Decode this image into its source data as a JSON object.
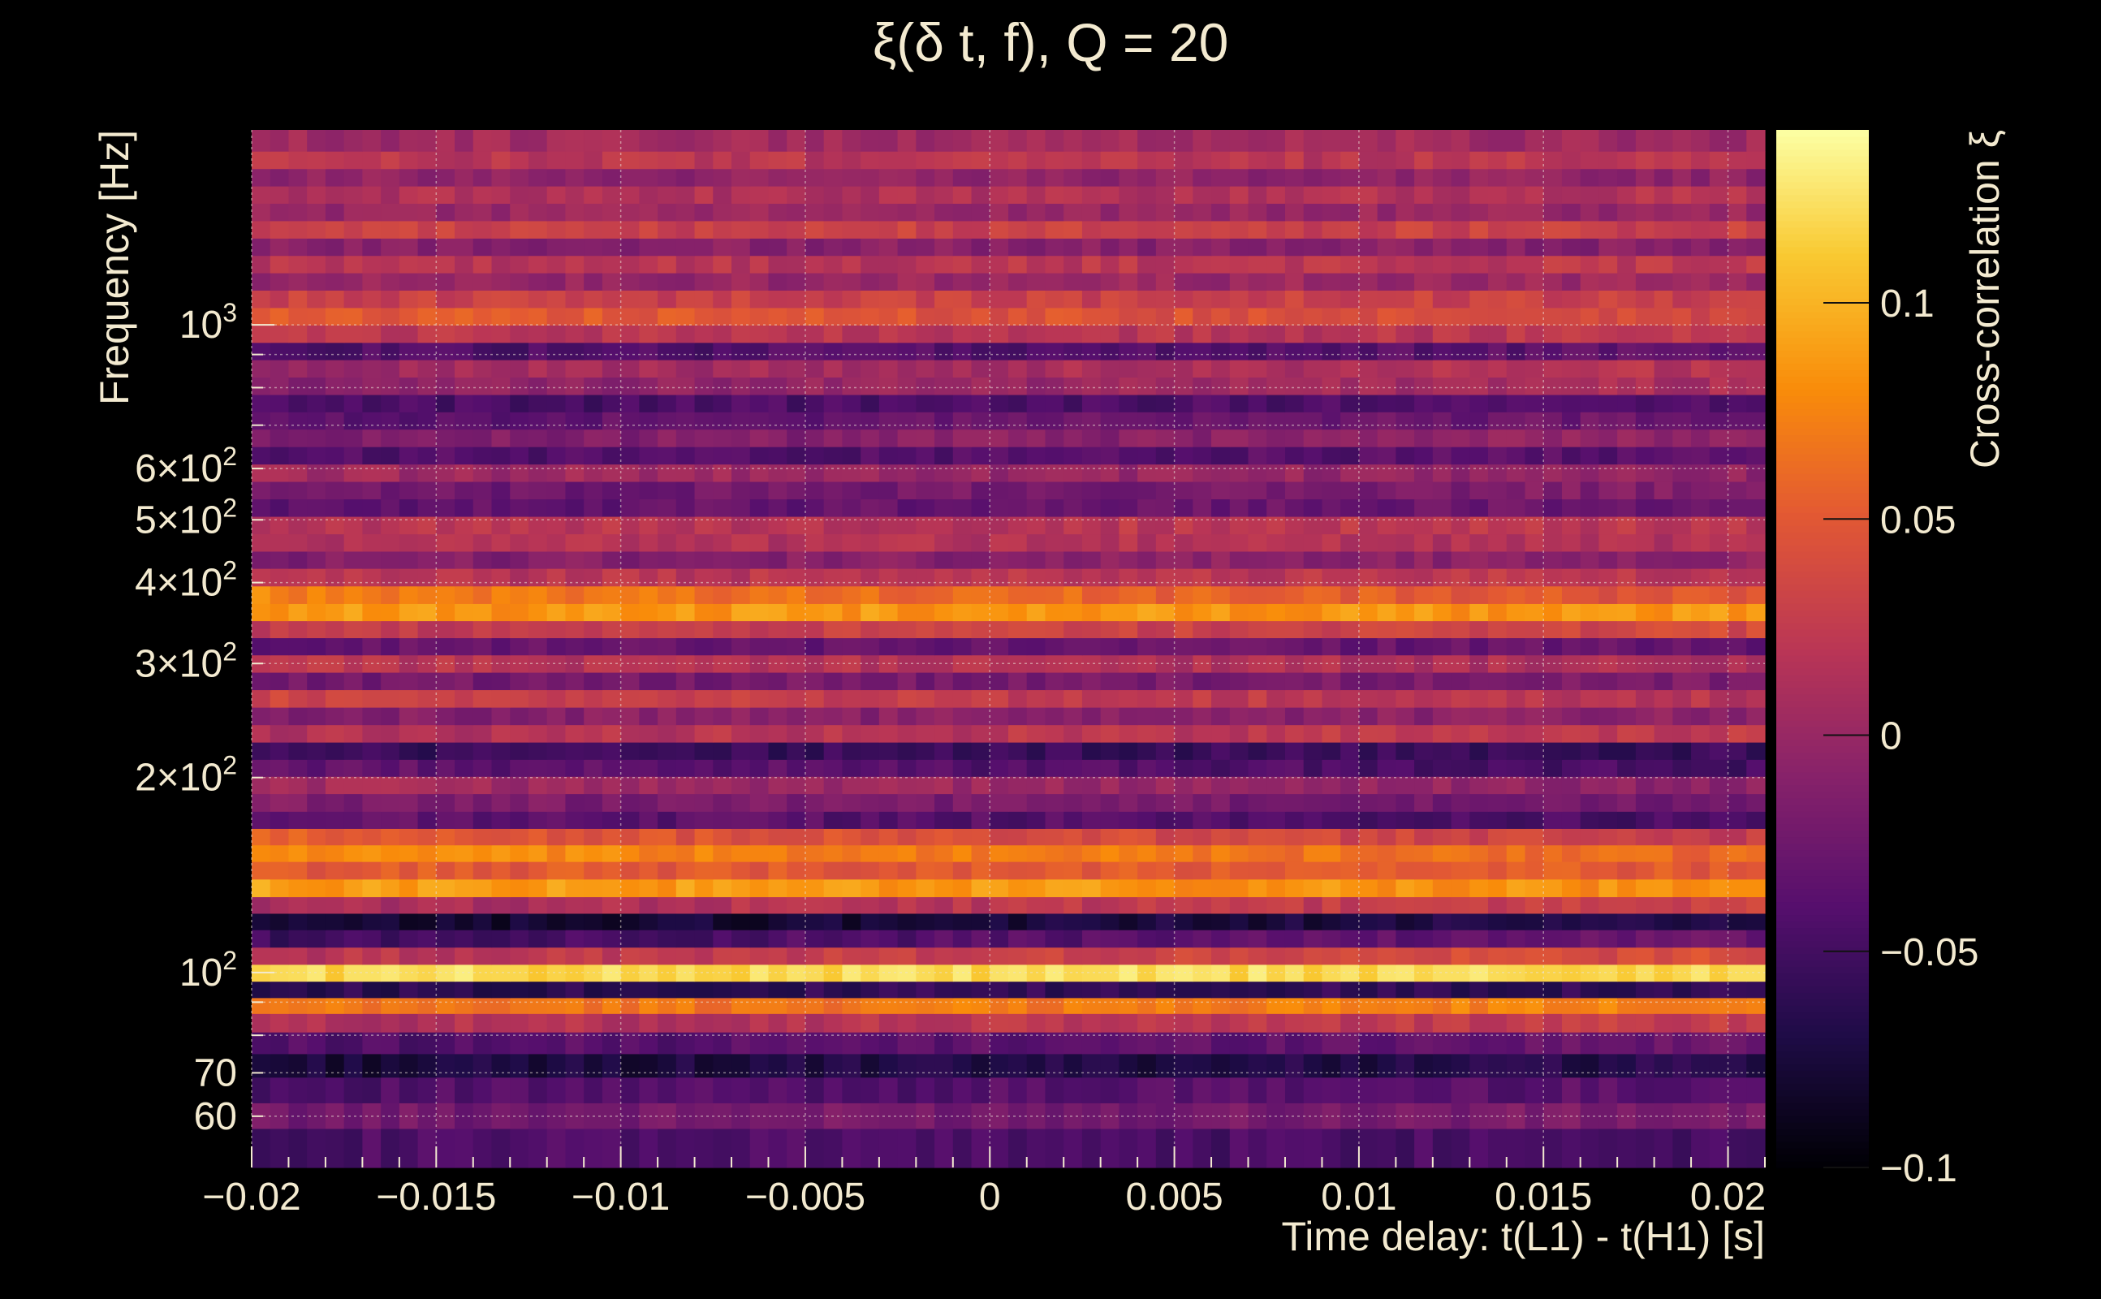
{
  "chart_data": {
    "type": "heatmap",
    "title": "ξ(δ t, f), Q = 20",
    "xlabel": "Time delay: t(L1) - t(H1) [s]",
    "ylabel": "Frequency [Hz]",
    "zlabel": "Cross-correlation ξ",
    "xlim": [
      -0.02,
      0.021
    ],
    "ylim": [
      50,
      2000
    ],
    "yscale": "log",
    "zlim": [
      -0.1,
      0.14
    ],
    "grid": true,
    "colormap": "inferno",
    "x_ticks": [
      -0.02,
      -0.015,
      -0.01,
      -0.005,
      0,
      0.005,
      0.01,
      0.015,
      0.02
    ],
    "x_tick_labels": [
      "−0.02",
      "−0.015",
      "−0.01",
      "−0.005",
      "0",
      "0.005",
      "0.01",
      "0.015",
      "0.02"
    ],
    "y_ticks": [
      {
        "value": 1000,
        "base": "10",
        "exp": "3"
      },
      {
        "value": 600,
        "base": "6×10",
        "exp": "2"
      },
      {
        "value": 500,
        "base": "5×10",
        "exp": "2"
      },
      {
        "value": 400,
        "base": "4×10",
        "exp": "2"
      },
      {
        "value": 300,
        "base": "3×10",
        "exp": "2"
      },
      {
        "value": 200,
        "base": "2×10",
        "exp": "2"
      },
      {
        "value": 100,
        "base": "10",
        "exp": "2"
      },
      {
        "value": 70,
        "base": "70",
        "exp": ""
      },
      {
        "value": 60,
        "base": "60",
        "exp": ""
      }
    ],
    "z_ticks": [
      0.1,
      0.05,
      0,
      -0.05,
      -0.1
    ],
    "z_tick_labels": [
      "0.1",
      "0.05",
      "0",
      "−0.05",
      "−0.1"
    ],
    "frequency_bands": [
      {
        "f": 55,
        "mean": -0.045,
        "slope": 0.0
      },
      {
        "f": 60,
        "mean": -0.02,
        "slope": 0.1
      },
      {
        "f": 66,
        "mean": -0.04,
        "slope": 0.15
      },
      {
        "f": 72,
        "mean": -0.07,
        "slope": 0.2
      },
      {
        "f": 78,
        "mean": -0.035,
        "slope": 0.3
      },
      {
        "f": 84,
        "mean": 0.02,
        "slope": 0.3
      },
      {
        "f": 89,
        "mean": 0.07,
        "slope": 0.2
      },
      {
        "f": 94,
        "mean": -0.06,
        "slope": 0.1
      },
      {
        "f": 100,
        "mean": 0.12,
        "slope": 0.0
      },
      {
        "f": 106,
        "mean": 0.03,
        "slope": 0.5
      },
      {
        "f": 113,
        "mean": -0.04,
        "slope": 0.5
      },
      {
        "f": 120,
        "mean": -0.075,
        "slope": 0.3
      },
      {
        "f": 127,
        "mean": 0.02,
        "slope": 0.5
      },
      {
        "f": 135,
        "mean": 0.085,
        "slope": -0.2
      },
      {
        "f": 144,
        "mean": 0.05,
        "slope": 0.0
      },
      {
        "f": 153,
        "mean": 0.07,
        "slope": -0.4
      },
      {
        "f": 162,
        "mean": 0.04,
        "slope": -0.5
      },
      {
        "f": 172,
        "mean": -0.04,
        "slope": -0.3
      },
      {
        "f": 183,
        "mean": -0.02,
        "slope": -0.2
      },
      {
        "f": 195,
        "mean": 0.0,
        "slope": -0.3
      },
      {
        "f": 207,
        "mean": -0.04,
        "slope": -0.3
      },
      {
        "f": 220,
        "mean": -0.055,
        "slope": 0.0
      },
      {
        "f": 234,
        "mean": 0.02,
        "slope": 0.2
      },
      {
        "f": 249,
        "mean": -0.01,
        "slope": 0.1
      },
      {
        "f": 265,
        "mean": 0.025,
        "slope": -0.3
      },
      {
        "f": 282,
        "mean": -0.02,
        "slope": 0.1
      },
      {
        "f": 300,
        "mean": 0.015,
        "slope": -0.2
      },
      {
        "f": 319,
        "mean": -0.03,
        "slope": 0.0
      },
      {
        "f": 339,
        "mean": 0.03,
        "slope": 0.3
      },
      {
        "f": 360,
        "mean": 0.085,
        "slope": 0.0
      },
      {
        "f": 383,
        "mean": 0.06,
        "slope": -0.6
      },
      {
        "f": 408,
        "mean": 0.02,
        "slope": 0.1
      },
      {
        "f": 434,
        "mean": -0.01,
        "slope": 0.2
      },
      {
        "f": 461,
        "mean": 0.015,
        "slope": -0.1
      },
      {
        "f": 491,
        "mean": 0.02,
        "slope": 0.1
      },
      {
        "f": 522,
        "mean": -0.03,
        "slope": 0.2
      },
      {
        "f": 556,
        "mean": -0.02,
        "slope": 0.3
      },
      {
        "f": 591,
        "mean": 0.0,
        "slope": -0.2
      },
      {
        "f": 629,
        "mean": -0.04,
        "slope": 0.1
      },
      {
        "f": 669,
        "mean": -0.01,
        "slope": 0.3
      },
      {
        "f": 712,
        "mean": -0.03,
        "slope": 0.2
      },
      {
        "f": 757,
        "mean": -0.045,
        "slope": 0.1
      },
      {
        "f": 805,
        "mean": 0.0,
        "slope": 0.4
      },
      {
        "f": 857,
        "mean": 0.01,
        "slope": 0.3
      },
      {
        "f": 911,
        "mean": -0.04,
        "slope": 0.2
      },
      {
        "f": 969,
        "mean": 0.02,
        "slope": 0.0
      },
      {
        "f": 1031,
        "mean": 0.045,
        "slope": -0.3
      },
      {
        "f": 1097,
        "mean": 0.03,
        "slope": 0.0
      },
      {
        "f": 1167,
        "mean": 0.0,
        "slope": 0.1
      },
      {
        "f": 1241,
        "mean": 0.02,
        "slope": 0.1
      },
      {
        "f": 1320,
        "mean": -0.01,
        "slope": 0.0
      },
      {
        "f": 1404,
        "mean": 0.03,
        "slope": 0.0
      },
      {
        "f": 1494,
        "mean": 0.0,
        "slope": 0.0
      },
      {
        "f": 1589,
        "mean": 0.015,
        "slope": 0.1
      },
      {
        "f": 1690,
        "mean": -0.005,
        "slope": 0.0
      },
      {
        "f": 1798,
        "mean": 0.02,
        "slope": 0.0
      },
      {
        "f": 1913,
        "mean": 0.005,
        "slope": 0.0
      }
    ]
  }
}
